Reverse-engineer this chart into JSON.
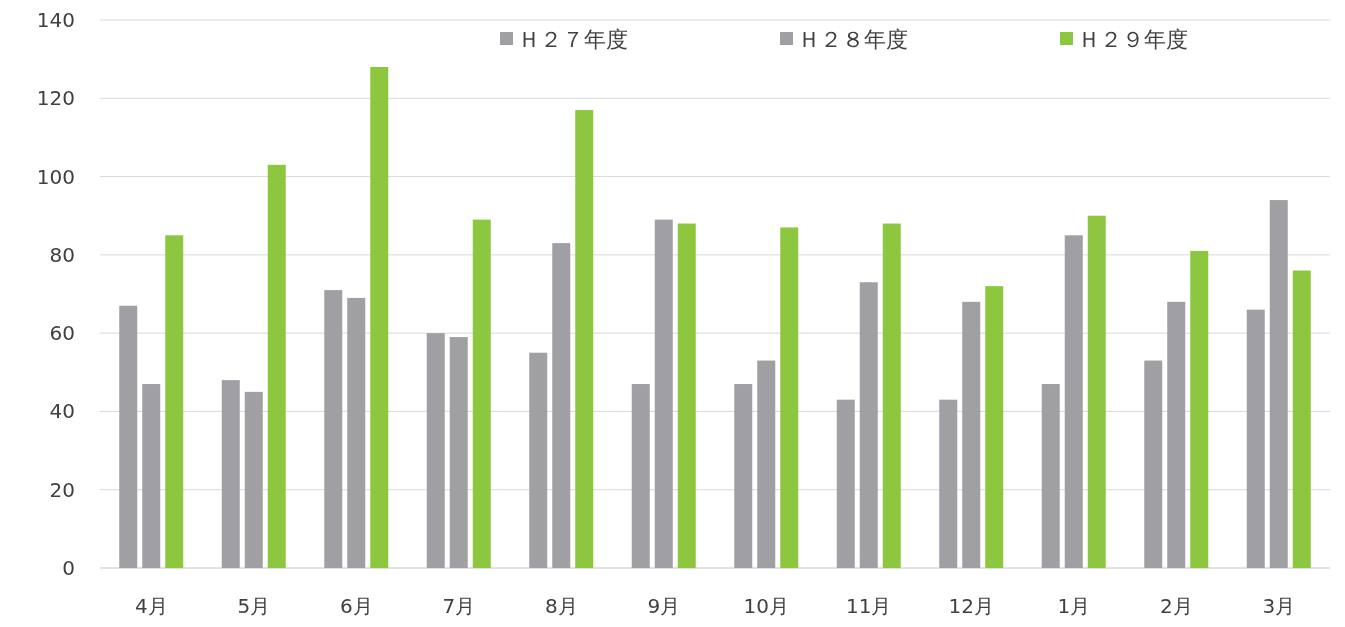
{
  "chart_data": {
    "type": "bar",
    "categories": [
      "4月",
      "5月",
      "6月",
      "7月",
      "8月",
      "9月",
      "10月",
      "11月",
      "12月",
      "1月",
      "2月",
      "3月"
    ],
    "series": [
      {
        "name": "Ｈ２７年度",
        "color": "#a0a0a4",
        "values": [
          67,
          48,
          71,
          60,
          55,
          47,
          47,
          43,
          43,
          47,
          53,
          66
        ]
      },
      {
        "name": "Ｈ２８年度",
        "color": "#a0a0a4",
        "values": [
          47,
          45,
          69,
          59,
          83,
          89,
          53,
          73,
          68,
          85,
          68,
          94
        ]
      },
      {
        "name": "Ｈ２９年度",
        "color": "#8dc63f",
        "values": [
          85,
          103,
          128,
          89,
          117,
          88,
          87,
          88,
          72,
          90,
          81,
          76
        ]
      }
    ],
    "ylim": [
      0,
      140
    ],
    "yticks": [
      0,
      20,
      40,
      60,
      80,
      100,
      120,
      140
    ],
    "grid": "y",
    "legend": "top"
  }
}
